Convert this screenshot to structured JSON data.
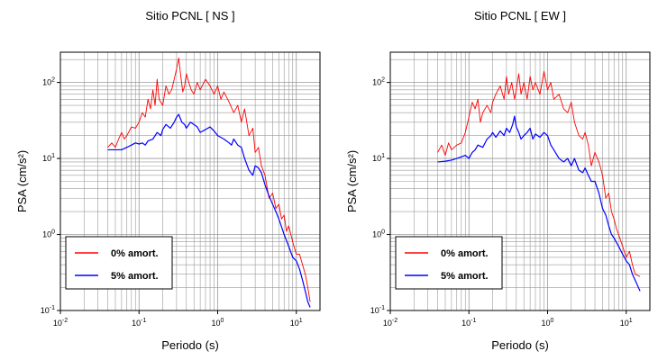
{
  "chart_data": [
    {
      "type": "line",
      "title": "Sitio PCNL [ NS ]",
      "xlabel": "Periodo (s)",
      "ylabel": "PSA (cm/s²)",
      "x_scale": "log",
      "y_scale": "log",
      "xlim": [
        0.01,
        20
      ],
      "ylim": [
        0.1,
        250
      ],
      "x_tick_labels": [
        {
          "base": "10",
          "exp": "-2"
        },
        {
          "base": "10",
          "exp": "-1"
        },
        {
          "base": "10",
          "exp": "0"
        },
        {
          "base": "10",
          "exp": "1"
        }
      ],
      "y_tick_labels": [
        {
          "base": "10",
          "exp": "-1"
        },
        {
          "base": "10",
          "exp": "0"
        },
        {
          "base": "10",
          "exp": "1"
        },
        {
          "base": "10",
          "exp": "2"
        }
      ],
      "grid": true,
      "legend_position": "bottom-left",
      "series": [
        {
          "name": "0% amort.",
          "color": "#ff0000",
          "points": [
            [
              0.04,
              14
            ],
            [
              0.045,
              16
            ],
            [
              0.05,
              14
            ],
            [
              0.055,
              18
            ],
            [
              0.06,
              22
            ],
            [
              0.065,
              18
            ],
            [
              0.07,
              20
            ],
            [
              0.08,
              26
            ],
            [
              0.09,
              25
            ],
            [
              0.1,
              30
            ],
            [
              0.11,
              40
            ],
            [
              0.12,
              35
            ],
            [
              0.13,
              60
            ],
            [
              0.14,
              45
            ],
            [
              0.15,
              80
            ],
            [
              0.16,
              50
            ],
            [
              0.17,
              110
            ],
            [
              0.18,
              60
            ],
            [
              0.2,
              50
            ],
            [
              0.22,
              90
            ],
            [
              0.24,
              70
            ],
            [
              0.26,
              80
            ],
            [
              0.28,
              110
            ],
            [
              0.3,
              150
            ],
            [
              0.32,
              210
            ],
            [
              0.34,
              120
            ],
            [
              0.36,
              75
            ],
            [
              0.38,
              90
            ],
            [
              0.4,
              130
            ],
            [
              0.43,
              100
            ],
            [
              0.46,
              80
            ],
            [
              0.5,
              70
            ],
            [
              0.55,
              100
            ],
            [
              0.6,
              80
            ],
            [
              0.7,
              110
            ],
            [
              0.8,
              90
            ],
            [
              0.9,
              70
            ],
            [
              1.0,
              90
            ],
            [
              1.1,
              60
            ],
            [
              1.2,
              75
            ],
            [
              1.4,
              55
            ],
            [
              1.6,
              40
            ],
            [
              1.8,
              50
            ],
            [
              2.0,
              30
            ],
            [
              2.2,
              45
            ],
            [
              2.5,
              20
            ],
            [
              2.8,
              25
            ],
            [
              3.0,
              12
            ],
            [
              3.3,
              14
            ],
            [
              3.6,
              8
            ],
            [
              4.0,
              6
            ],
            [
              4.5,
              3
            ],
            [
              5.0,
              3.5
            ],
            [
              5.5,
              2.2
            ],
            [
              6.0,
              2.5
            ],
            [
              6.5,
              1.6
            ],
            [
              7.0,
              1.8
            ],
            [
              7.5,
              1.1
            ],
            [
              8.0,
              1.3
            ],
            [
              9.0,
              0.8
            ],
            [
              10.0,
              0.55
            ],
            [
              11.0,
              0.55
            ],
            [
              12.0,
              0.4
            ],
            [
              13.0,
              0.3
            ],
            [
              14.0,
              0.2
            ],
            [
              15.0,
              0.13
            ]
          ]
        },
        {
          "name": "5% amort.",
          "color": "#0000ff",
          "points": [
            [
              0.04,
              13
            ],
            [
              0.05,
              13
            ],
            [
              0.06,
              13
            ],
            [
              0.07,
              14
            ],
            [
              0.08,
              15
            ],
            [
              0.09,
              16
            ],
            [
              0.1,
              15.5
            ],
            [
              0.11,
              16
            ],
            [
              0.12,
              15
            ],
            [
              0.13,
              17
            ],
            [
              0.15,
              18
            ],
            [
              0.17,
              22
            ],
            [
              0.19,
              20
            ],
            [
              0.2,
              24
            ],
            [
              0.22,
              28
            ],
            [
              0.25,
              25
            ],
            [
              0.28,
              30
            ],
            [
              0.3,
              35
            ],
            [
              0.32,
              38
            ],
            [
              0.35,
              30
            ],
            [
              0.38,
              28
            ],
            [
              0.4,
              25
            ],
            [
              0.45,
              30
            ],
            [
              0.5,
              28
            ],
            [
              0.55,
              26
            ],
            [
              0.6,
              22
            ],
            [
              0.7,
              24
            ],
            [
              0.8,
              26
            ],
            [
              0.9,
              23
            ],
            [
              1.0,
              20
            ],
            [
              1.2,
              18
            ],
            [
              1.4,
              16
            ],
            [
              1.5,
              15
            ],
            [
              1.6,
              18
            ],
            [
              1.8,
              15
            ],
            [
              2.0,
              14
            ],
            [
              2.2,
              10
            ],
            [
              2.5,
              7
            ],
            [
              2.8,
              6
            ],
            [
              3.0,
              8
            ],
            [
              3.3,
              7.5
            ],
            [
              3.6,
              6.5
            ],
            [
              4.0,
              4.5
            ],
            [
              4.5,
              3.2
            ],
            [
              5.0,
              2.5
            ],
            [
              5.5,
              2.0
            ],
            [
              6.0,
              1.6
            ],
            [
              7.0,
              1.0
            ],
            [
              8.0,
              0.7
            ],
            [
              9.0,
              0.5
            ],
            [
              10.0,
              0.45
            ],
            [
              11.0,
              0.35
            ],
            [
              12.0,
              0.25
            ],
            [
              13.0,
              0.18
            ],
            [
              14.0,
              0.13
            ],
            [
              15.0,
              0.11
            ]
          ]
        }
      ]
    },
    {
      "type": "line",
      "title": "Sitio PCNL [ EW ]",
      "xlabel": "Periodo (s)",
      "ylabel": "PSA (cm/s²)",
      "x_scale": "log",
      "y_scale": "log",
      "xlim": [
        0.01,
        20
      ],
      "ylim": [
        0.1,
        250
      ],
      "x_tick_labels": [
        {
          "base": "10",
          "exp": "-2"
        },
        {
          "base": "10",
          "exp": "-1"
        },
        {
          "base": "10",
          "exp": "0"
        },
        {
          "base": "10",
          "exp": "1"
        }
      ],
      "y_tick_labels": [
        {
          "base": "10",
          "exp": "-1"
        },
        {
          "base": "10",
          "exp": "0"
        },
        {
          "base": "10",
          "exp": "1"
        },
        {
          "base": "10",
          "exp": "2"
        }
      ],
      "grid": true,
      "legend_position": "bottom-left",
      "series": [
        {
          "name": "0% amort.",
          "color": "#ff0000",
          "points": [
            [
              0.04,
              12
            ],
            [
              0.045,
              15
            ],
            [
              0.05,
              11
            ],
            [
              0.055,
              16
            ],
            [
              0.06,
              13
            ],
            [
              0.07,
              15
            ],
            [
              0.08,
              16
            ],
            [
              0.09,
              22
            ],
            [
              0.1,
              35
            ],
            [
              0.11,
              55
            ],
            [
              0.12,
              45
            ],
            [
              0.13,
              60
            ],
            [
              0.14,
              30
            ],
            [
              0.15,
              40
            ],
            [
              0.17,
              50
            ],
            [
              0.19,
              40
            ],
            [
              0.2,
              55
            ],
            [
              0.22,
              70
            ],
            [
              0.25,
              90
            ],
            [
              0.28,
              60
            ],
            [
              0.3,
              120
            ],
            [
              0.32,
              70
            ],
            [
              0.35,
              100
            ],
            [
              0.38,
              60
            ],
            [
              0.4,
              80
            ],
            [
              0.43,
              130
            ],
            [
              0.46,
              70
            ],
            [
              0.5,
              100
            ],
            [
              0.55,
              60
            ],
            [
              0.6,
              120
            ],
            [
              0.65,
              80
            ],
            [
              0.7,
              100
            ],
            [
              0.8,
              70
            ],
            [
              0.9,
              140
            ],
            [
              1.0,
              80
            ],
            [
              1.1,
              100
            ],
            [
              1.2,
              60
            ],
            [
              1.4,
              70
            ],
            [
              1.6,
              45
            ],
            [
              1.8,
              40
            ],
            [
              2.0,
              55
            ],
            [
              2.2,
              30
            ],
            [
              2.5,
              20
            ],
            [
              2.8,
              18
            ],
            [
              3.0,
              22
            ],
            [
              3.3,
              15
            ],
            [
              3.6,
              8
            ],
            [
              4.0,
              12
            ],
            [
              4.5,
              9
            ],
            [
              5.0,
              6
            ],
            [
              5.5,
              3
            ],
            [
              6.0,
              3.5
            ],
            [
              6.5,
              2.0
            ],
            [
              7.0,
              1.6
            ],
            [
              7.5,
              1.2
            ],
            [
              8.0,
              1.0
            ],
            [
              9.0,
              0.7
            ],
            [
              10.0,
              0.5
            ],
            [
              11.0,
              0.6
            ],
            [
              12.0,
              0.4
            ],
            [
              13.0,
              0.3
            ],
            [
              15.0,
              0.28
            ]
          ]
        },
        {
          "name": "5% amort.",
          "color": "#0000ff",
          "points": [
            [
              0.04,
              9
            ],
            [
              0.05,
              9.2
            ],
            [
              0.06,
              9.5
            ],
            [
              0.07,
              10
            ],
            [
              0.08,
              10.5
            ],
            [
              0.09,
              11
            ],
            [
              0.1,
              10
            ],
            [
              0.11,
              12
            ],
            [
              0.12,
              13
            ],
            [
              0.13,
              15
            ],
            [
              0.15,
              14
            ],
            [
              0.17,
              18
            ],
            [
              0.19,
              20
            ],
            [
              0.2,
              22
            ],
            [
              0.22,
              19
            ],
            [
              0.25,
              23
            ],
            [
              0.28,
              20
            ],
            [
              0.3,
              25
            ],
            [
              0.33,
              22
            ],
            [
              0.36,
              28
            ],
            [
              0.38,
              36
            ],
            [
              0.4,
              26
            ],
            [
              0.43,
              22
            ],
            [
              0.46,
              18
            ],
            [
              0.5,
              20
            ],
            [
              0.55,
              22
            ],
            [
              0.6,
              25
            ],
            [
              0.65,
              18
            ],
            [
              0.7,
              21
            ],
            [
              0.8,
              19
            ],
            [
              0.9,
              22
            ],
            [
              1.0,
              20
            ],
            [
              1.1,
              15
            ],
            [
              1.2,
              13
            ],
            [
              1.4,
              10
            ],
            [
              1.6,
              9
            ],
            [
              1.8,
              10
            ],
            [
              2.0,
              8
            ],
            [
              2.2,
              10
            ],
            [
              2.5,
              7
            ],
            [
              2.8,
              6.5
            ],
            [
              3.0,
              7.5
            ],
            [
              3.3,
              6
            ],
            [
              3.6,
              5
            ],
            [
              4.0,
              5
            ],
            [
              4.5,
              3.5
            ],
            [
              5.0,
              2.2
            ],
            [
              5.5,
              1.8
            ],
            [
              6.0,
              1.3
            ],
            [
              6.5,
              1.0
            ],
            [
              7.0,
              0.9
            ],
            [
              8.0,
              0.7
            ],
            [
              9.0,
              0.55
            ],
            [
              10.0,
              0.45
            ],
            [
              11.0,
              0.4
            ],
            [
              12.0,
              0.3
            ],
            [
              13.0,
              0.25
            ],
            [
              15.0,
              0.18
            ]
          ]
        }
      ]
    }
  ]
}
